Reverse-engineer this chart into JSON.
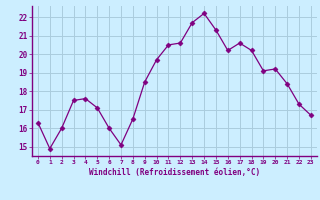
{
  "x": [
    0,
    1,
    2,
    3,
    4,
    5,
    6,
    7,
    8,
    9,
    10,
    11,
    12,
    13,
    14,
    15,
    16,
    17,
    18,
    19,
    20,
    21,
    22,
    23
  ],
  "y": [
    16.3,
    14.9,
    16.0,
    17.5,
    17.6,
    17.1,
    16.0,
    15.1,
    16.5,
    18.5,
    19.7,
    20.5,
    20.6,
    21.7,
    22.2,
    21.3,
    20.2,
    20.6,
    20.2,
    19.1,
    19.2,
    18.4,
    17.3,
    16.7
  ],
  "line_color": "#800080",
  "marker": "D",
  "marker_size": 2.5,
  "bg_color": "#cceeff",
  "grid_color": "#aaccdd",
  "xlabel": "Windchill (Refroidissement éolien,°C)",
  "tick_color": "#800080",
  "ylim": [
    14.5,
    22.6
  ],
  "yticks": [
    15,
    16,
    17,
    18,
    19,
    20,
    21,
    22
  ],
  "xlim": [
    -0.5,
    23.5
  ],
  "xticks": [
    0,
    1,
    2,
    3,
    4,
    5,
    6,
    7,
    8,
    9,
    10,
    11,
    12,
    13,
    14,
    15,
    16,
    17,
    18,
    19,
    20,
    21,
    22,
    23
  ]
}
